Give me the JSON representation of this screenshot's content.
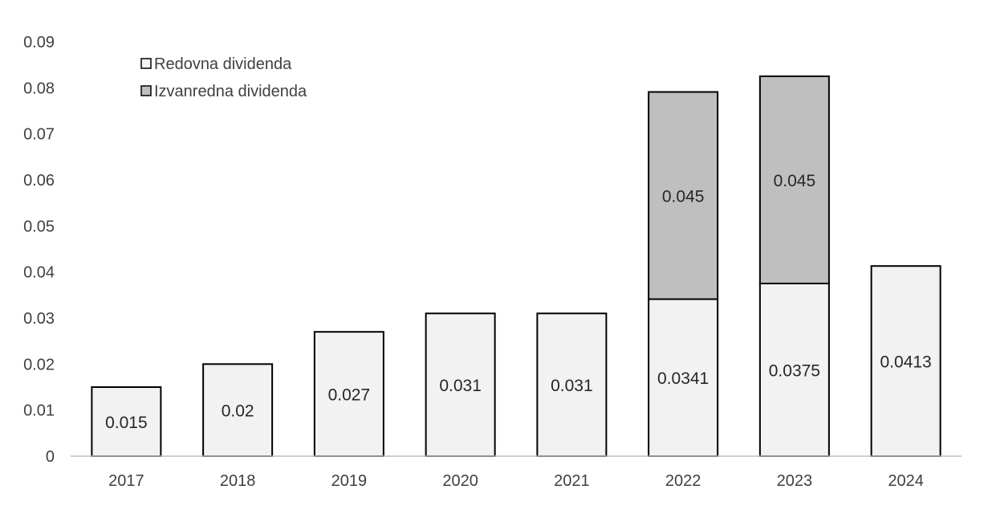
{
  "chart_data": {
    "type": "bar",
    "stacked": true,
    "categories": [
      "2017",
      "2018",
      "2019",
      "2020",
      "2021",
      "2022",
      "2023",
      "2024"
    ],
    "series": [
      {
        "name": "Redovna dividenda",
        "values": [
          0.015,
          0.02,
          0.027,
          0.031,
          0.031,
          0.0341,
          0.0375,
          0.0413
        ],
        "labels": [
          "0.015",
          "0.02",
          "0.027",
          "0.031",
          "0.031",
          "0.0341",
          "0.0375",
          "0.0413"
        ],
        "color": "#f2f2f2"
      },
      {
        "name": "Izvanredna dividenda",
        "values": [
          null,
          null,
          null,
          null,
          null,
          0.045,
          0.045,
          null
        ],
        "labels": [
          "",
          "",
          "",
          "",
          "",
          "0.045",
          "0.045",
          ""
        ],
        "color": "#bfbfbf"
      }
    ],
    "yticks": [
      "0",
      "0.01",
      "0.02",
      "0.03",
      "0.04",
      "0.05",
      "0.06",
      "0.07",
      "0.08",
      "0.09"
    ],
    "ylim": [
      0,
      0.09
    ],
    "grid": false,
    "legend_position": "top-left",
    "bar_outline_color": "#000000"
  }
}
